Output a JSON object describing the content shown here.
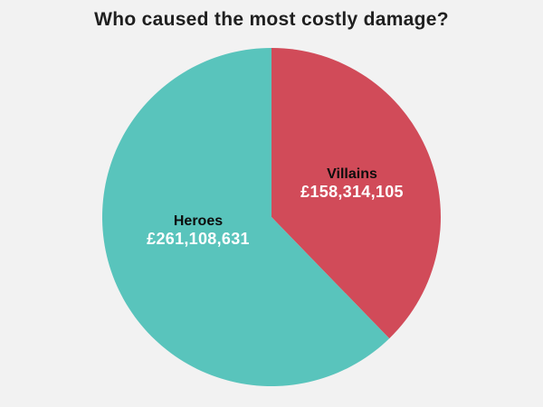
{
  "page": {
    "background_color": "#f2f2f2"
  },
  "chart_data": {
    "type": "pie",
    "title": "Who caused the most costly damage?",
    "direction": "clockwise",
    "start_angle_deg": 0,
    "legend_position": "none",
    "label_position": "inside",
    "slices": [
      {
        "label": "Villains",
        "value": 158314105,
        "display_value": "£158,314,105",
        "color": "#d14b59"
      },
      {
        "label": "Heroes",
        "value": 261108631,
        "display_value": "£261,108,631",
        "color": "#59c4bc"
      }
    ]
  }
}
